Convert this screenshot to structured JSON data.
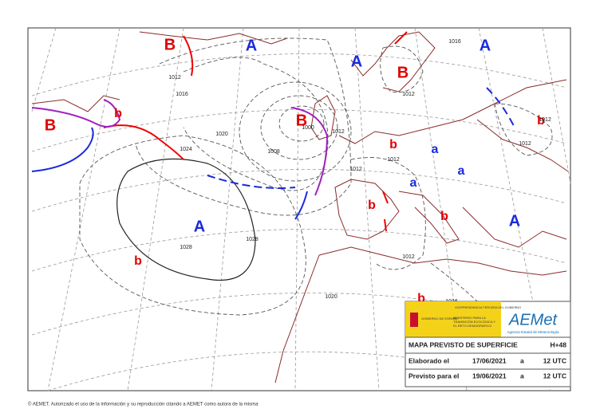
{
  "map": {
    "pressure_centers": [
      "A",
      "A",
      "A",
      "A",
      "A",
      "B",
      "B",
      "B",
      "B",
      "b",
      "b",
      "b",
      "b",
      "b",
      "b",
      "b",
      "a",
      "a",
      "a"
    ],
    "isobar_labels": [
      "1016",
      "1012",
      "1020",
      "1024",
      "1008",
      "1000",
      "1012",
      "1028",
      "1028",
      "1020",
      "1012",
      "1016",
      "1012",
      "1012",
      "1016",
      "1012",
      "1012",
      "1012"
    ],
    "footer": "© AEMET. Autorizado el uso de la información y su reproducción citando a AEMET como autora de la misma"
  },
  "legend_box": {
    "government": "GOBIERNO DE ESPAÑA",
    "vicepresidency": "VICEPRESIDENCIA TERCERA DEL GOBIERNO",
    "ministry": "MINISTERIO PARA LA TRANSICIÓN ECOLÓGICA Y EL RETO DEMOGRÁFICO",
    "logo": "AEMet",
    "agency": "Agencia Estatal de Meteorología",
    "title": "MAPA PREVISTO DE SUPERFICIE",
    "lead_time": "H+48",
    "issued_label": "Elaborado el",
    "issued_date": "17/06/2021",
    "issued_at": "a",
    "issued_time": "12 UTC",
    "valid_label": "Previsto para el",
    "valid_date": "19/06/2021",
    "valid_at": "a",
    "valid_time": "12 UTC"
  }
}
